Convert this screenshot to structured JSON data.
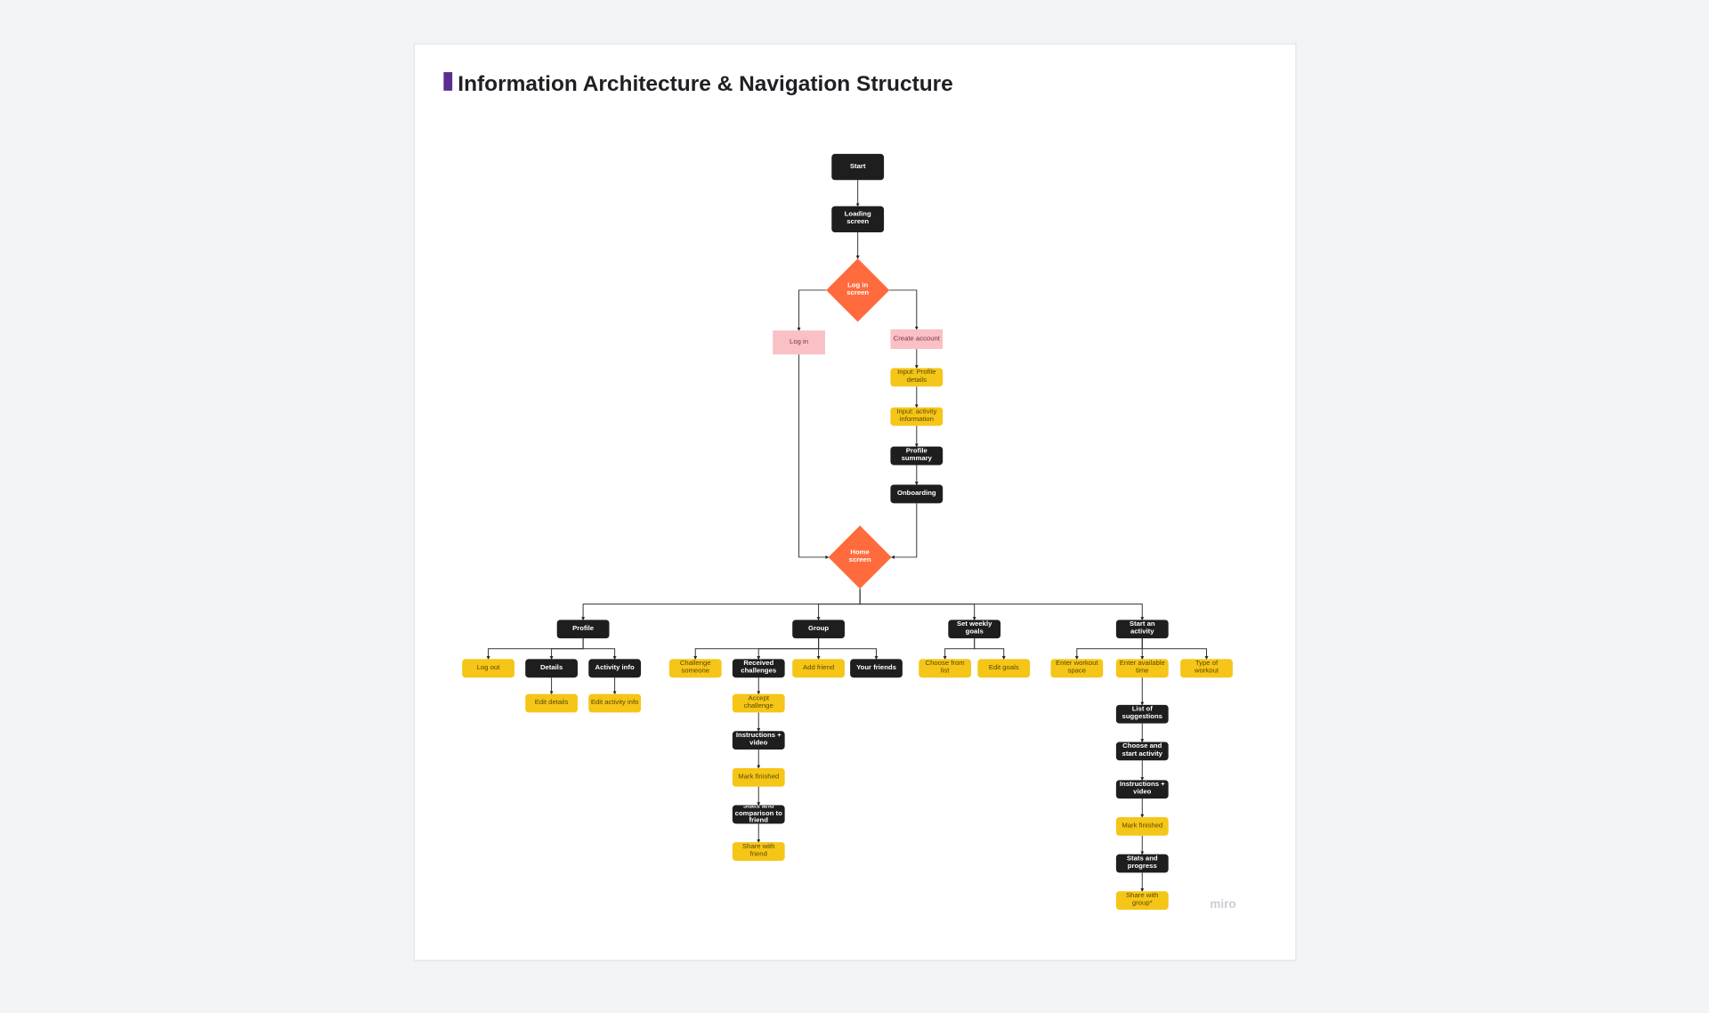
{
  "header": {
    "title": "Information Architecture & Navigation Structure"
  },
  "nodes": [
    {
      "label": "Start"
    },
    {
      "label": "Loading screen"
    },
    {
      "label": "Log in screen"
    },
    {
      "label": "Log in"
    },
    {
      "label": "Create account"
    },
    {
      "label": "Input: Profile details"
    },
    {
      "label": "Input: activity information"
    },
    {
      "label": "Profile summary"
    },
    {
      "label": "Onboarding"
    },
    {
      "label": "Home screen"
    },
    {
      "label": "Profile"
    },
    {
      "label": "Group"
    },
    {
      "label": "Set weekly goals"
    },
    {
      "label": "Start an activity"
    },
    {
      "label": "Log out"
    },
    {
      "label": "Details"
    },
    {
      "label": "Activity info"
    },
    {
      "label": "Edit details"
    },
    {
      "label": "Edit activity info"
    },
    {
      "label": "Challenge someone"
    },
    {
      "label": "Received challenges"
    },
    {
      "label": "Add friend"
    },
    {
      "label": "Your friends"
    },
    {
      "label": "Accept challenge"
    },
    {
      "label": "Instructions + video"
    },
    {
      "label": "Mark finished"
    },
    {
      "label": "Stats and comparison to friend"
    },
    {
      "label": "Share with friend"
    },
    {
      "label": "Choose from list"
    },
    {
      "label": "Edit goals"
    },
    {
      "label": "Enter workout space"
    },
    {
      "label": "Enter available time"
    },
    {
      "label": "Type of workout"
    },
    {
      "label": "List of suggestions"
    },
    {
      "label": "Choose and start activity"
    },
    {
      "label": "Instructions + video"
    },
    {
      "label": "Mark finished"
    },
    {
      "label": "Stats and progress"
    },
    {
      "label": "Share with group*"
    }
  ],
  "watermark": "miro"
}
